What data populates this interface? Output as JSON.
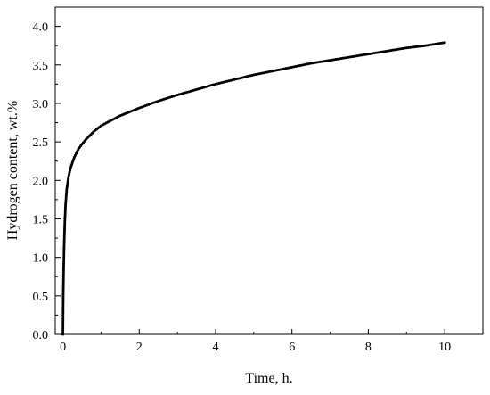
{
  "chart_data": {
    "type": "line",
    "title": "",
    "xlabel": "Time, h.",
    "ylabel": "Hydrogen content, wt.%",
    "xlim": [
      -0.2,
      11.0
    ],
    "ylim": [
      0.0,
      4.25
    ],
    "xticks": [
      0,
      2,
      4,
      6,
      8,
      10
    ],
    "xtick_labels": [
      "0",
      "2",
      "4",
      "6",
      "8",
      "10"
    ],
    "yticks": [
      0.0,
      0.5,
      1.0,
      1.5,
      2.0,
      2.5,
      3.0,
      3.5,
      4.0
    ],
    "ytick_labels": [
      "0.0",
      "0.5",
      "1.0",
      "1.5",
      "2.0",
      "2.5",
      "3.0",
      "3.5",
      "4.0"
    ],
    "grid": false,
    "legend": "none",
    "series": [
      {
        "color": "#000000",
        "marker": "circle",
        "x": [
          0.0,
          0.01,
          0.02,
          0.03,
          0.05,
          0.07,
          0.1,
          0.15,
          0.2,
          0.3,
          0.4,
          0.5,
          0.6,
          0.8,
          1.0,
          1.5,
          2.0,
          2.5,
          3.0,
          3.5,
          4.0,
          4.5,
          5.0,
          5.5,
          6.0,
          6.5,
          7.0,
          7.5,
          8.0,
          8.5,
          9.0,
          9.5,
          10.0
        ],
        "y": [
          0.0,
          0.55,
          0.85,
          1.1,
          1.45,
          1.68,
          1.88,
          2.05,
          2.16,
          2.3,
          2.4,
          2.47,
          2.53,
          2.63,
          2.71,
          2.84,
          2.94,
          3.03,
          3.11,
          3.18,
          3.25,
          3.31,
          3.37,
          3.42,
          3.47,
          3.52,
          3.56,
          3.6,
          3.64,
          3.68,
          3.72,
          3.75,
          3.79
        ]
      }
    ]
  }
}
